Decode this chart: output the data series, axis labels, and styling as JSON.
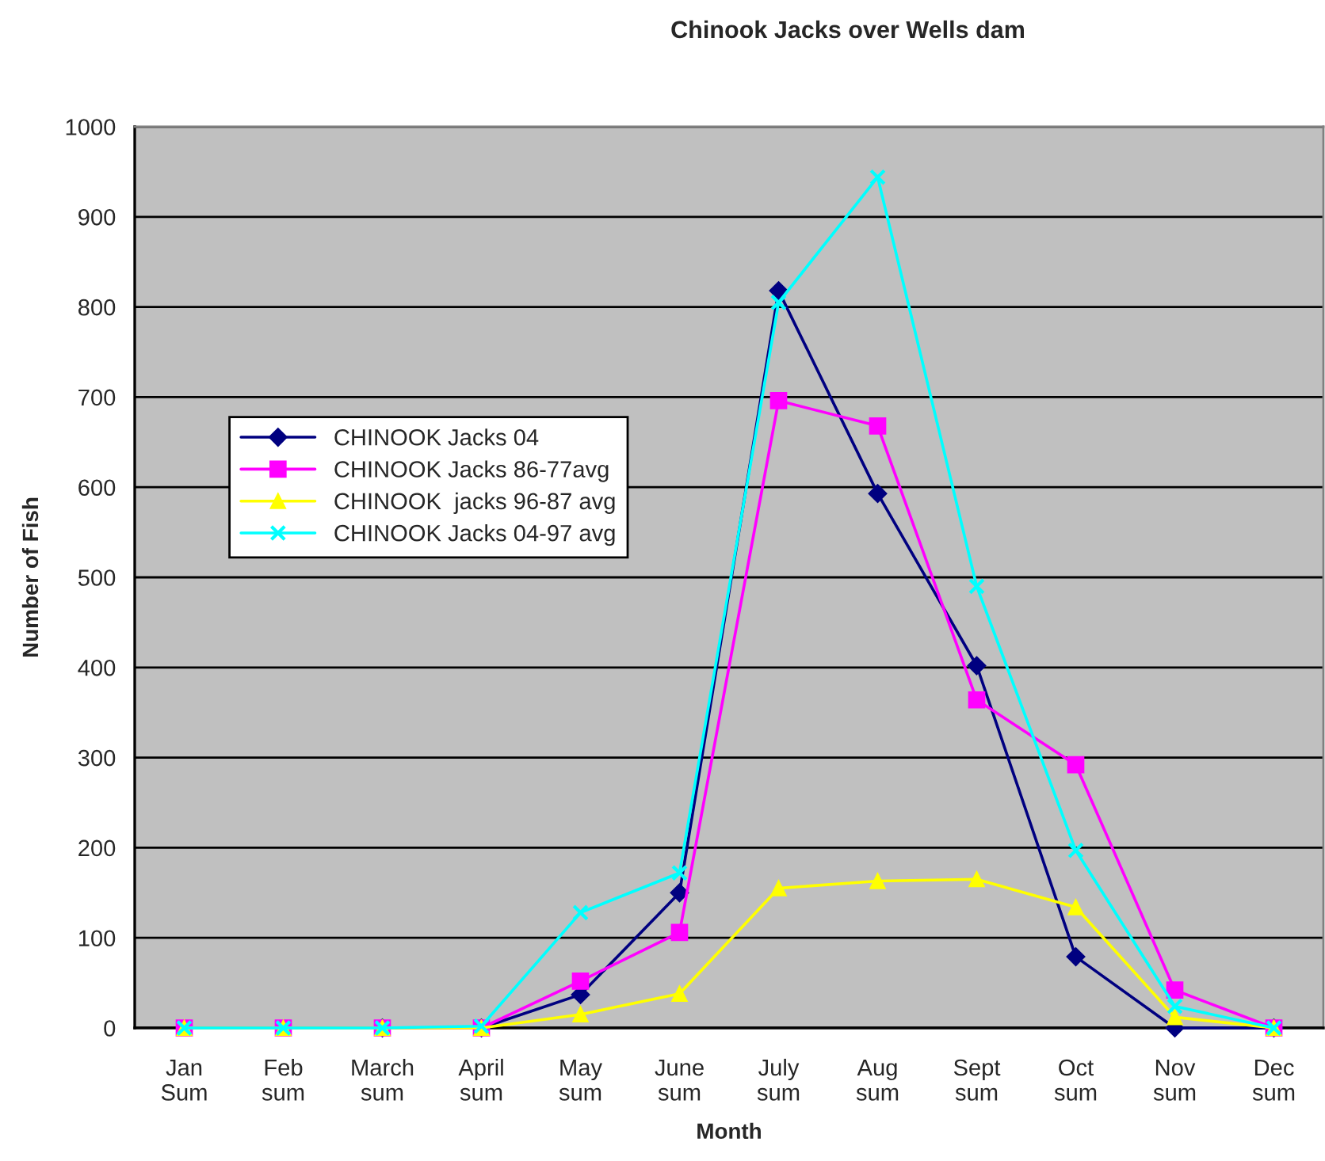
{
  "chart_data": {
    "type": "line",
    "title": "Chinook Jacks over Wells dam",
    "xlabel": "Month",
    "ylabel": "Number of Fish",
    "categories": [
      "Jan\nSum",
      "Feb\nsum",
      "March\nsum",
      "April\nsum",
      "May\nsum",
      "June\nsum",
      "July\nsum",
      "Aug\nsum",
      "Sept\nsum",
      "Oct\nsum",
      "Nov\nsum",
      "Dec\nsum"
    ],
    "series": [
      {
        "name": "CHINOOK Jacks 04",
        "color": "#000080",
        "marker": "diamond",
        "values": [
          null,
          null,
          0,
          0,
          37,
          150,
          818,
          593,
          402,
          79,
          0,
          0
        ]
      },
      {
        "name": "CHINOOK Jacks 86-77avg",
        "color": "#ff00ff",
        "marker": "square",
        "values": [
          0,
          0,
          0,
          0,
          52,
          106,
          696,
          668,
          364,
          292,
          42,
          0
        ]
      },
      {
        "name": "CHINOOK  jacks 96-87 avg",
        "color": "#ffff00",
        "marker": "triangle",
        "values": [
          0,
          0,
          0,
          0,
          15,
          38,
          155,
          163,
          165,
          134,
          12,
          0
        ]
      },
      {
        "name": "CHINOOK Jacks 04-97 avg",
        "color": "#00ffff",
        "marker": "cross",
        "values": [
          0,
          0,
          0,
          2,
          128,
          172,
          805,
          944,
          490,
          197,
          24,
          0
        ]
      }
    ],
    "ylim": [
      0,
      1000
    ],
    "yticks": [
      0,
      100,
      200,
      300,
      400,
      500,
      600,
      700,
      800,
      900,
      1000
    ],
    "grid": "y",
    "legend": "left",
    "line_style": "solid"
  }
}
